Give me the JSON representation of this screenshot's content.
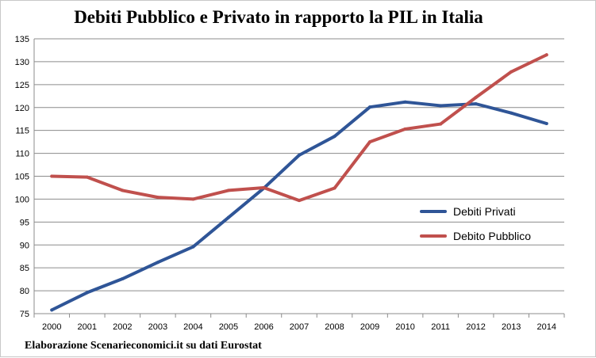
{
  "chart_data": {
    "type": "line",
    "title": "Debiti Pubblico e Privato in rapporto la PIL in Italia",
    "source": "Elaborazione Scenarieconomici.it su dati Eurostat",
    "xlabel": "",
    "ylabel": "",
    "x": [
      "2000",
      "2001",
      "2002",
      "2003",
      "2004",
      "2005",
      "2006",
      "2007",
      "2008",
      "2009",
      "2010",
      "2011",
      "2012",
      "2013",
      "2014"
    ],
    "ylim": [
      75,
      135
    ],
    "yticks": [
      75,
      80,
      85,
      90,
      95,
      100,
      105,
      110,
      115,
      120,
      125,
      130,
      135
    ],
    "grid": true,
    "legend_position": "right",
    "series": [
      {
        "name": "Debiti Privati",
        "color": "#2f5597",
        "values": [
          75.8,
          79.6,
          82.6,
          86.2,
          89.6,
          96.0,
          102.4,
          109.6,
          113.7,
          120.1,
          121.2,
          120.4,
          120.8,
          118.8,
          116.5
        ]
      },
      {
        "name": "Debito Pubblico",
        "color": "#c0504d",
        "values": [
          105.0,
          104.8,
          101.9,
          100.4,
          100.0,
          101.9,
          102.5,
          99.7,
          102.4,
          112.5,
          115.3,
          116.4,
          122.2,
          127.8,
          131.5
        ]
      }
    ]
  }
}
